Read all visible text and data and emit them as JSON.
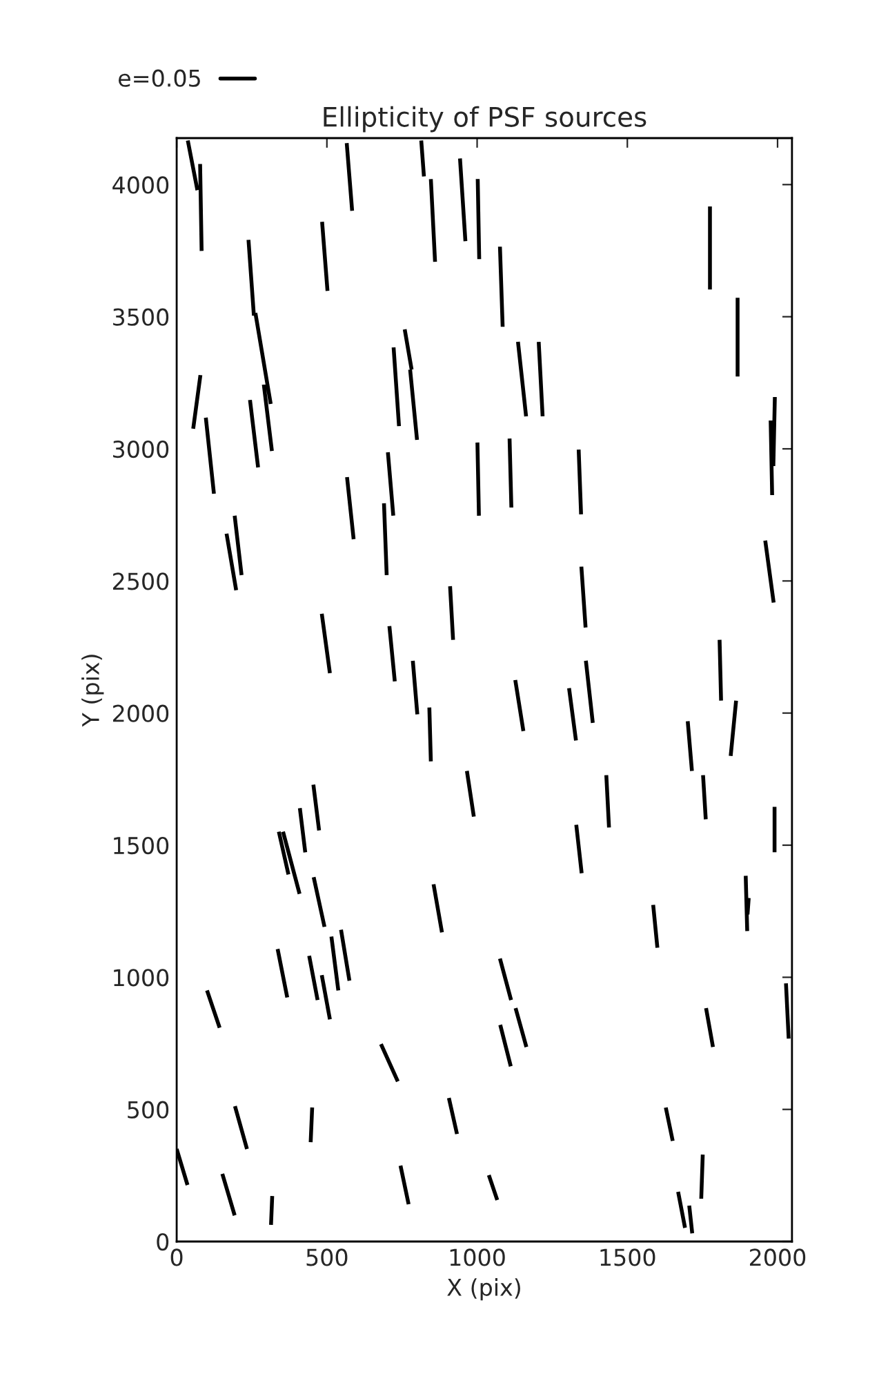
{
  "chart_data": {
    "type": "line",
    "title": "Ellipticity of PSF sources",
    "xlabel": "X (pix)",
    "ylabel": "Y (pix)",
    "xlim": [
      0,
      2048
    ],
    "ylim": [
      0,
      4176
    ],
    "xticks": [
      0,
      500,
      1000,
      1500,
      2000
    ],
    "yticks": [
      0,
      500,
      1000,
      1500,
      2000,
      2500,
      3000,
      3500,
      4000
    ],
    "grid": false,
    "legend": "top left",
    "marker": "none",
    "line_style": "solid",
    "series": [
      {
        "name": "e=0.05",
        "color": "#000000",
        "x": [
          37,
          69,
          null,
          78,
          83,
          null,
          566,
          584,
          null,
          814,
          823,
          null,
          846,
          860,
          null,
          943,
          961,
          null,
          1002,
          1007,
          null,
          484,
          502,
          null,
          239,
          257,
          null,
          262,
          313,
          null,
          290,
          317,
          null,
          79,
          55,
          null,
          97,
          124,
          null,
          244,
          271,
          null,
          722,
          740,
          null,
          759,
          782,
          null,
          777,
          800,
          null,
          1001,
          1006,
          null,
          703,
          721,
          null,
          567,
          589,
          null,
          690,
          699,
          null,
          193,
          216,
          null,
          166,
          198,
          null,
          910,
          920,
          null,
          483,
          510,
          null,
          708,
          726,
          null,
          786,
          801,
          null,
          1076,
          1085,
          null,
          1775,
          1775,
          null,
          1136,
          1163,
          null,
          1205,
          1218,
          null,
          1867,
          1867,
          null,
          1991,
          1986,
          null,
          1977,
          1982,
          null,
          1108,
          1114,
          null,
          1338,
          1346,
          null,
          1959,
          1987,
          null,
          1347,
          1361,
          null,
          1362,
          1385,
          null,
          1807,
          1812,
          null,
          1127,
          1154,
          null,
          1306,
          1329,
          null,
          841,
          846,
          null,
          966,
          989,
          null,
          455,
          474,
          null,
          410,
          428,
          null,
          340,
          372,
          null,
          354,
          409,
          null,
          456,
          492,
          null,
          855,
          883,
          null,
          336,
          368,
          null,
          441,
          469,
          null,
          515,
          538,
          null,
          547,
          575,
          null,
          101,
          143,
          null,
          680,
          736,
          null,
          194,
          234,
          null,
          451,
          446,
          null,
          906,
          933,
          null,
          0,
          36,
          null,
          152,
          193,
          null,
          318,
          314,
          null,
          745,
          772,
          null,
          1701,
          1715,
          null,
          1862,
          1844,
          null,
          1430,
          1439,
          null,
          1752,
          1761,
          null,
          1990,
          1990,
          null,
          1330,
          1348,
          null,
          1894,
          1899,
          null,
          1904,
          1900,
          null,
          1586,
          1600,
          null,
          1076,
          1113,
          null,
          1128,
          1164,
          null,
          1077,
          1112,
          null,
          1762,
          1785,
          null,
          2028,
          2037,
          null,
          1628,
          1651,
          null,
          1039,
          1067,
          null,
          1751,
          1746,
          null,
          1669,
          1692,
          null,
          1706,
          1716
        ],
        "values": [
          4167,
          3979,
          null,
          4078,
          3749,
          null,
          4157,
          3901,
          null,
          4167,
          4031,
          null,
          4021,
          3708,
          null,
          4099,
          3786,
          null,
          4021,
          3718,
          null,
          3859,
          3598,
          null,
          3791,
          3504,
          null,
          3514,
          3170,
          null,
          3243,
          2992,
          null,
          3279,
          3076,
          null,
          3118,
          2830,
          null,
          3185,
          2930,
          null,
          3384,
          3086,
          null,
          3452,
          3300,
          null,
          3300,
          3034,
          null,
          3024,
          2747,
          null,
          2987,
          2747,
          null,
          2893,
          2658,
          null,
          2794,
          2522,
          null,
          2747,
          2522,
          null,
          2679,
          2465,
          null,
          2480,
          2277,
          null,
          2376,
          2151,
          null,
          2329,
          2120,
          null,
          2198,
          1995,
          null,
          3765,
          3462,
          null,
          3917,
          3603,
          null,
          3405,
          3123,
          null,
          3405,
          3123,
          null,
          3572,
          3274,
          null,
          3196,
          2935,
          null,
          3107,
          2825,
          null,
          3039,
          2778,
          null,
          2997,
          2752,
          null,
          2653,
          2418,
          null,
          2554,
          2324,
          null,
          2198,
          1963,
          null,
          2277,
          2047,
          null,
          2125,
          1932,
          null,
          2094,
          1896,
          null,
          2021,
          1817,
          null,
          1781,
          1608,
          null,
          1729,
          1556,
          null,
          1640,
          1473,
          null,
          1551,
          1389,
          null,
          1551,
          1316,
          null,
          1379,
          1191,
          null,
          1352,
          1170,
          null,
          1107,
          924,
          null,
          1081,
          914,
          null,
          1154,
          950,
          null,
          1180,
          987,
          null,
          950,
          809,
          null,
          747,
          606,
          null,
          512,
          350,
          null,
          507,
          376,
          null,
          543,
          407,
          null,
          350,
          214,
          null,
          256,
          99,
          null,
          172,
          63,
          null,
          287,
          141,
          null,
          1969,
          1781,
          null,
          2047,
          1838,
          null,
          1765,
          1567,
          null,
          1765,
          1598,
          null,
          1645,
          1473,
          null,
          1577,
          1394,
          null,
          1384,
          1175,
          null,
          1300,
          1238,
          null,
          1274,
          1112,
          null,
          1071,
          914,
          null,
          883,
          736,
          null,
          820,
          663,
          null,
          883,
          736,
          null,
          977,
          768,
          null,
          507,
          381,
          null,
          251,
          157,
          null,
          329,
          162,
          null,
          188,
          52,
          null,
          136,
          31
        ]
      },
      {
        "color": "#000000",
        "x": [
          483,
          510
        ],
        "values": [
          1008,
          841
        ]
      }
    ]
  }
}
